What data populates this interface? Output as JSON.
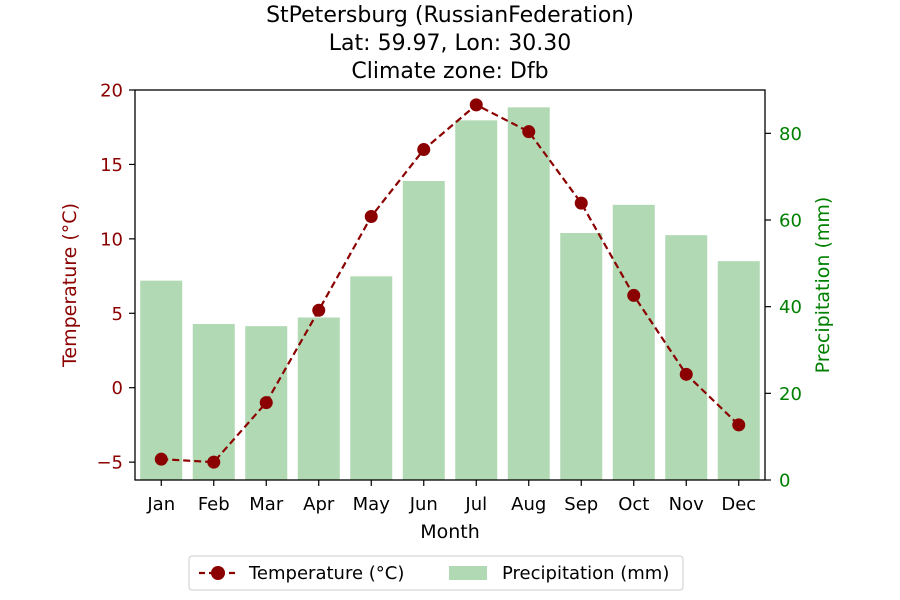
{
  "chart_data": {
    "type": "bar+line",
    "title_lines": [
      "StPetersburg (RussianFederation)",
      "Lat: 59.97, Lon: 30.30",
      "Climate zone: Dfb"
    ],
    "xlabel": "Month",
    "categories": [
      "Jan",
      "Feb",
      "Mar",
      "Apr",
      "May",
      "Jun",
      "Jul",
      "Aug",
      "Sep",
      "Oct",
      "Nov",
      "Dec"
    ],
    "temperature": {
      "name": "Temperature (°C)",
      "axis_label": "Temperature (°C)",
      "values": [
        -4.8,
        -5.0,
        -1.0,
        5.2,
        11.5,
        16.0,
        19.0,
        17.2,
        12.4,
        6.2,
        0.9,
        -2.5
      ],
      "ylim": [
        -6.2,
        20.0
      ],
      "ticks": [
        -5,
        0,
        5,
        10,
        15,
        20
      ],
      "tick_labels": [
        "−5",
        "0",
        "5",
        "10",
        "15",
        "20"
      ],
      "color": "#8b0000",
      "style": "dashed line with circle markers"
    },
    "precipitation": {
      "name": "Precipitation (mm)",
      "axis_label": "Precipitation (mm)",
      "values": [
        46,
        36,
        35.5,
        37.5,
        47,
        69,
        83,
        86,
        57,
        63.5,
        56.5,
        50.5
      ],
      "ylim": [
        0,
        90
      ],
      "ticks": [
        0,
        20,
        40,
        60,
        80
      ],
      "tick_labels": [
        "0",
        "20",
        "40",
        "60",
        "80"
      ],
      "color": "#b1d9b3",
      "axis_color": "#008000"
    },
    "legend": {
      "placement": "bottom-center",
      "entries": [
        "Temperature (°C)",
        "Precipitation (mm)"
      ]
    },
    "grid": false
  }
}
